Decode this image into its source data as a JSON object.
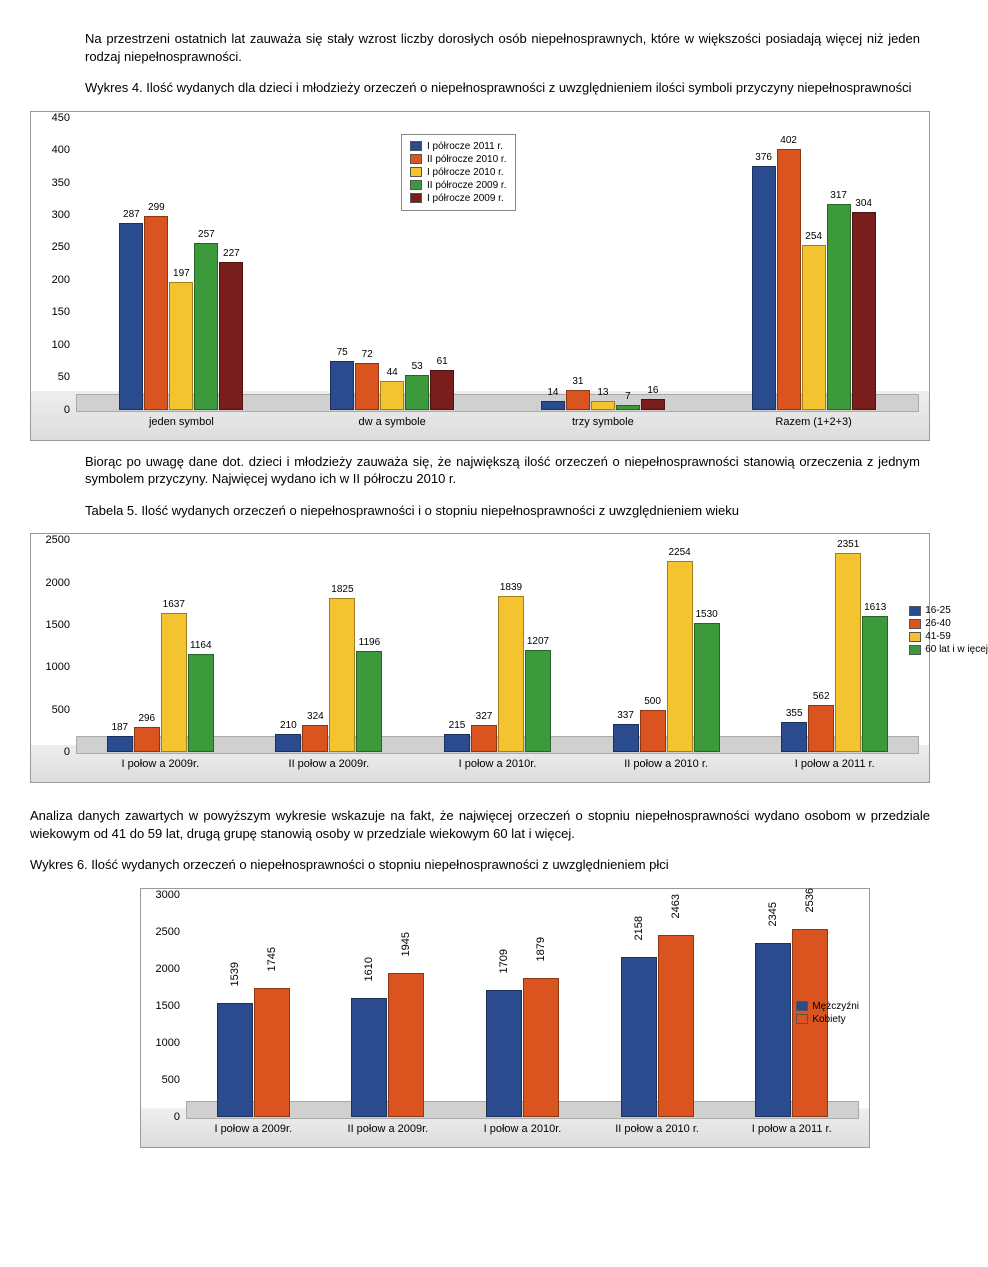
{
  "colors": {
    "blue": "#2a4b8d",
    "orange": "#d9541e",
    "yellow": "#f4c430",
    "green": "#3c9a3c",
    "maroon": "#7a1d1d"
  },
  "intro": "Na przestrzeni ostatnich lat zauważa się stały wzrost liczby dorosłych osób niepełnosprawnych, które w większości posiadają więcej niż jeden rodzaj niepełnosprawności.",
  "chart1": {
    "title": "Wykres 4. Ilość wydanych dla dzieci i młodzieży orzeczeń o niepełnosprawności z uwzględnieniem ilości symboli przyczyny niepełnosprawności",
    "type": "bar",
    "ylim": [
      0,
      450
    ],
    "ytick_step": 50,
    "series": [
      {
        "label": "I półrocze 2011 r.",
        "color_key": "blue"
      },
      {
        "label": "II półrocze 2010 r.",
        "color_key": "orange"
      },
      {
        "label": "I półrocze 2010 r.",
        "color_key": "yellow"
      },
      {
        "label": "II półrocze 2009 r.",
        "color_key": "green"
      },
      {
        "label": "I półrocze 2009 r.",
        "color_key": "maroon"
      }
    ],
    "categories": [
      "jeden symbol",
      "dw a symbole",
      "trzy symbole",
      "Razem (1+2+3)"
    ],
    "values": [
      [
        287,
        299,
        197,
        257,
        227
      ],
      [
        75,
        72,
        44,
        53,
        61
      ],
      [
        14,
        31,
        13,
        7,
        16
      ],
      [
        376,
        402,
        254,
        317,
        304
      ]
    ]
  },
  "para2": "Biorąc po uwagę dane dot. dzieci i młodzieży zauważa się, że największą ilość orzeczeń o niepełnosprawności stanowią orzeczenia z jednym symbolem przyczyny. Najwięcej wydano ich w II półroczu 2010 r.",
  "chart2": {
    "title": "Tabela 5. Ilość wydanych orzeczeń o niepełnosprawności i o stopniu niepełnosprawności z uwzględnieniem wieku",
    "type": "bar",
    "ylim": [
      0,
      2500
    ],
    "ytick_step": 500,
    "series": [
      {
        "label": "16-25",
        "color_key": "blue"
      },
      {
        "label": "26-40",
        "color_key": "orange"
      },
      {
        "label": "41-59",
        "color_key": "yellow"
      },
      {
        "label": "60 lat i w ięcej",
        "color_key": "green"
      }
    ],
    "categories": [
      "I połow a 2009r.",
      "II połow a 2009r.",
      "I połow a 2010r.",
      "II połow a 2010 r.",
      "I połow a 2011 r."
    ],
    "values": [
      [
        187,
        296,
        1637,
        1164
      ],
      [
        210,
        324,
        1825,
        1196
      ],
      [
        215,
        327,
        1839,
        1207
      ],
      [
        337,
        500,
        2254,
        1530
      ],
      [
        355,
        562,
        2351,
        1613
      ]
    ]
  },
  "para3": "Analiza danych zawartych w powyższym wykresie wskazuje na fakt, że najwięcej orzeczeń o stopniu niepełnosprawności wydano osobom w przedziale wiekowym od 41 do 59 lat, drugą grupę stanowią osoby w przedziale wiekowym 60 lat i więcej.",
  "chart3": {
    "title": "Wykres 6. Ilość wydanych orzeczeń o niepełnosprawności o stopniu niepełnosprawności z uwzględnieniem płci",
    "type": "bar",
    "ylim": [
      0,
      3000
    ],
    "ytick_step": 500,
    "series": [
      {
        "label": "Mężczyźni",
        "color_key": "blue"
      },
      {
        "label": "Kobiety",
        "color_key": "orange"
      }
    ],
    "categories": [
      "I połow a 2009r.",
      "II połow a 2009r.",
      "I połow a 2010r.",
      "II połow a 2010 r.",
      "I połow a 2011 r."
    ],
    "values": [
      [
        1539,
        1745
      ],
      [
        1610,
        1945
      ],
      [
        1709,
        1879
      ],
      [
        2158,
        2463
      ],
      [
        2345,
        2536
      ]
    ]
  }
}
